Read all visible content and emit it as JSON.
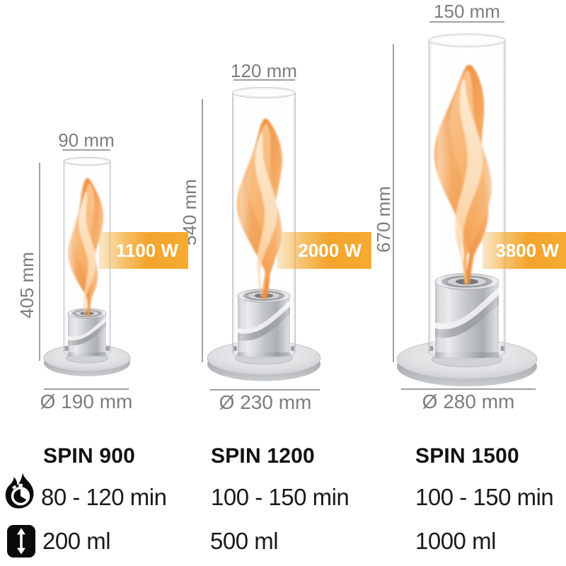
{
  "products": [
    {
      "name": "SPIN 900",
      "width": "90 mm",
      "height": "405 mm",
      "base_diameter": "Ø 190 mm",
      "power": "1100 W",
      "burn_time": "80 - 120 min",
      "fill_volume": "200 ml"
    },
    {
      "name": "SPIN 1200",
      "width": "120 mm",
      "height": "540 mm",
      "base_diameter": "Ø 230 mm",
      "power": "2000 W",
      "burn_time": "100 - 150 min",
      "fill_volume": "500 ml"
    },
    {
      "name": "SPIN 1500",
      "width": "150 mm",
      "height": "670 mm",
      "base_diameter": "Ø 280 mm",
      "power": "3800 W",
      "burn_time": "100 - 150 min",
      "fill_volume": "1000 ml"
    }
  ],
  "legend_icons": {
    "burn_time": "flame-timer-icon",
    "fill_volume": "fill-volume-icon"
  },
  "colors": {
    "accent_orange": "#F3A42C",
    "dimension_gray": "#7D7D7D",
    "line_gray": "#9EA0A2",
    "text_black": "#1A1A1A"
  }
}
